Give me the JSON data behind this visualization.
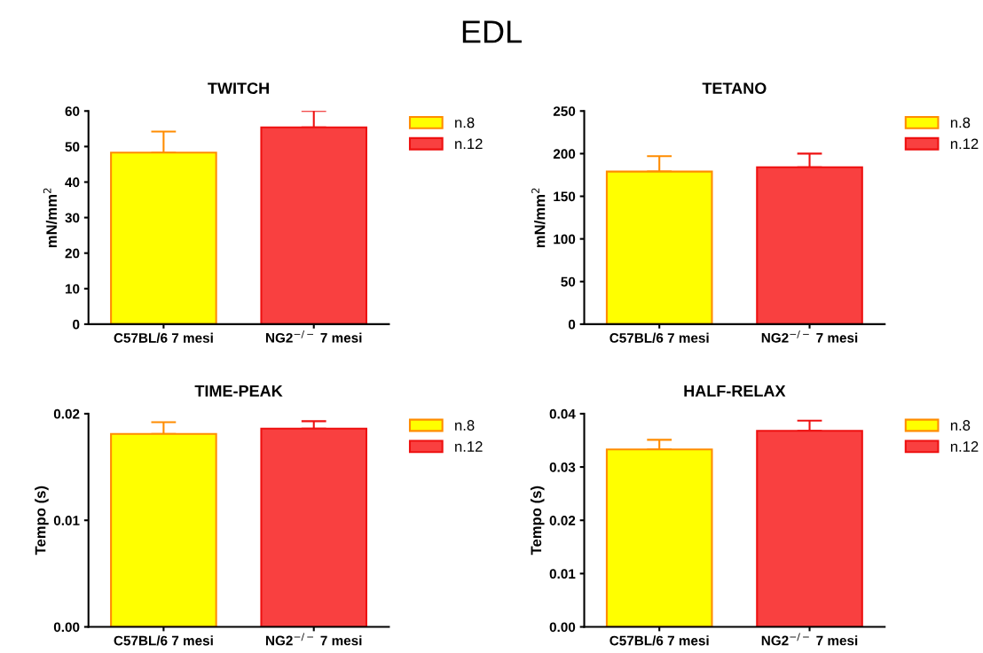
{
  "chart_data": [
    {
      "type": "bar",
      "title": "TWITCH",
      "ylabel": "mN/mm$^{2}$",
      "categories": [
        "C57BL/6 7 mesi",
        "NG2$^{−/−}$ 7 mesi"
      ],
      "series": [
        {
          "name": "n.8",
          "color": "#ffff00",
          "values": [
            48.3,
            null
          ],
          "errors": [
            [
              48.3,
              54.2
            ],
            null
          ]
        },
        {
          "name": "n.12",
          "color": "#f94040",
          "values": [
            null,
            55.4
          ],
          "errors": [
            null,
            [
              55.4,
              60.0
            ]
          ]
        }
      ],
      "ylim": [
        0,
        60
      ],
      "yticks": [
        0,
        10,
        20,
        30,
        40,
        50,
        60
      ],
      "legend": "top right",
      "annotations": [
        "EDL"
      ]
    },
    {
      "type": "bar",
      "title": "TETANO",
      "ylabel": "mN/mm$^{2}$",
      "categories": [
        "C57BL/6 7 mesi",
        "NG2$^{−/−}$ 7 mesi"
      ],
      "series": [
        {
          "name": "n.8",
          "color": "#ffff00",
          "values": [
            179,
            null
          ],
          "errors": [
            [
              179,
              197
            ],
            null
          ]
        },
        {
          "name": "n.12",
          "color": "#f94040",
          "values": [
            null,
            184
          ],
          "errors": [
            null,
            [
              184,
              200
            ]
          ]
        }
      ],
      "ylim": [
        0,
        250
      ],
      "yticks": [
        0,
        50,
        100,
        150,
        200,
        250
      ],
      "legend": "top right"
    },
    {
      "type": "bar",
      "title": "TIME-PEAK",
      "ylabel": "Tempo (s)",
      "categories": [
        "C57BL/6 7 mesi",
        "NG2$^{−/−}$ 7 mesi"
      ],
      "series": [
        {
          "name": "n.8",
          "color": "#ffff00",
          "values": [
            0.0181,
            null
          ],
          "errors": [
            [
              0.0181,
              0.0192
            ],
            null
          ]
        },
        {
          "name": "n.12",
          "color": "#f94040",
          "values": [
            null,
            0.0186
          ],
          "errors": [
            null,
            [
              0.0186,
              0.0193
            ]
          ]
        }
      ],
      "ylim": [
        0,
        0.02
      ],
      "yticks": [
        {
          "value": 0,
          "label": "0.00"
        },
        {
          "value": 0.01,
          "label": "0.01"
        },
        {
          "value": 0.02,
          "label": "0.02"
        }
      ],
      "legend": "top right"
    },
    {
      "type": "bar",
      "title": "HALF-RELAX",
      "ylabel": "Tempo (s)",
      "categories": [
        "C57BL/6 7 mesi",
        "NG2$^{−/−}$ 7 mesi"
      ],
      "series": [
        {
          "name": "n.8",
          "color": "#ffff00",
          "values": [
            0.0333,
            null
          ],
          "errors": [
            [
              0.0333,
              0.0351
            ],
            null
          ]
        },
        {
          "name": "n.12",
          "color": "#f94040",
          "values": [
            null,
            0.0368
          ],
          "errors": [
            null,
            [
              0.0368,
              0.0387
            ]
          ]
        }
      ],
      "ylim": [
        0,
        0.04
      ],
      "yticks": [
        {
          "value": 0,
          "label": "0.00"
        },
        {
          "value": 0.01,
          "label": "0.01"
        },
        {
          "value": 0.02,
          "label": "0.02"
        },
        {
          "value": 0.03,
          "label": "0.03"
        },
        {
          "value": 0.04,
          "label": "0.04"
        }
      ],
      "legend": "top right"
    }
  ]
}
